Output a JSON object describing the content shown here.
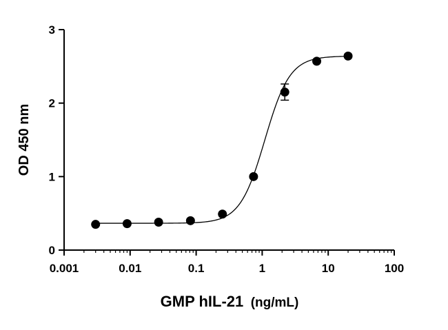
{
  "chart_data": {
    "type": "scatter",
    "xscale": "log",
    "xlim": [
      0.001,
      100
    ],
    "ylim": [
      0,
      3
    ],
    "x_ticks": [
      0.001,
      0.01,
      0.1,
      1,
      10,
      100
    ],
    "x_tick_labels": [
      "0.001",
      "0.01",
      "0.1",
      "1",
      "10",
      "100"
    ],
    "y_ticks": [
      0,
      1,
      2,
      3
    ],
    "y_tick_labels": [
      "0",
      "1",
      "2",
      "3"
    ],
    "xlabel_main": "GMP hIL-21",
    "xlabel_unit": "(ng/mL)",
    "ylabel": "OD 450 nm",
    "grid": false,
    "series": [
      {
        "x": [
          0.003,
          0.009,
          0.027,
          0.082,
          0.25,
          0.74,
          2.2,
          6.7,
          20
        ],
        "y": [
          0.35,
          0.36,
          0.38,
          0.4,
          0.49,
          1.0,
          2.15,
          2.57,
          2.64
        ],
        "error": [
          0,
          0,
          0,
          0,
          0,
          0,
          0.11,
          0,
          0
        ],
        "marker": "circle",
        "color": "#000000"
      }
    ],
    "fit": {
      "model": "4PL",
      "bottom": 0.365,
      "top": 2.64,
      "ec50": 1.1,
      "hill": 2.3
    }
  }
}
